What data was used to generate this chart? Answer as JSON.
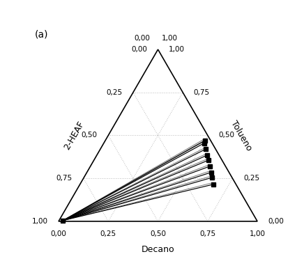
{
  "title": "(a)",
  "axis_labels": {
    "bottom": "Decano",
    "left": "2-HEAF",
    "right": "Tolueno"
  },
  "tick_values": [
    0.0,
    0.25,
    0.5,
    0.75,
    1.0
  ],
  "tick_labels": [
    "0,00",
    "0,25",
    "0,50",
    "0,75",
    "1,00"
  ],
  "grid_color": "#bbbbbb",
  "grid_linestyle": ":",
  "marker_size": 4.5,
  "tie_lines_exp": [
    [
      [
        0.975,
        0.005,
        0.02
      ],
      [
        0.03,
        0.47,
        0.5
      ]
    ],
    [
      [
        0.975,
        0.005,
        0.02
      ],
      [
        0.04,
        0.455,
        0.505
      ]
    ],
    [
      [
        0.975,
        0.005,
        0.02
      ],
      [
        0.05,
        0.42,
        0.53
      ]
    ],
    [
      [
        0.975,
        0.005,
        0.02
      ],
      [
        0.06,
        0.385,
        0.555
      ]
    ],
    [
      [
        0.975,
        0.005,
        0.02
      ],
      [
        0.07,
        0.355,
        0.575
      ]
    ],
    [
      [
        0.975,
        0.005,
        0.02
      ],
      [
        0.08,
        0.32,
        0.6
      ]
    ],
    [
      [
        0.975,
        0.005,
        0.02
      ],
      [
        0.09,
        0.285,
        0.625
      ]
    ],
    [
      [
        0.975,
        0.005,
        0.02
      ],
      [
        0.1,
        0.255,
        0.645
      ]
    ],
    [
      [
        0.975,
        0.005,
        0.02
      ],
      [
        0.115,
        0.215,
        0.67
      ]
    ]
  ],
  "tie_lines_calc": [
    [
      [
        0.975,
        0.005,
        0.02
      ],
      [
        0.025,
        0.48,
        0.495
      ]
    ],
    [
      [
        0.975,
        0.005,
        0.02
      ],
      [
        0.035,
        0.465,
        0.5
      ]
    ],
    [
      [
        0.975,
        0.005,
        0.02
      ],
      [
        0.045,
        0.43,
        0.525
      ]
    ],
    [
      [
        0.975,
        0.005,
        0.02
      ],
      [
        0.055,
        0.395,
        0.55
      ]
    ],
    [
      [
        0.975,
        0.005,
        0.02
      ],
      [
        0.065,
        0.365,
        0.57
      ]
    ],
    [
      [
        0.975,
        0.005,
        0.02
      ],
      [
        0.075,
        0.33,
        0.595
      ]
    ],
    [
      [
        0.975,
        0.005,
        0.02
      ],
      [
        0.085,
        0.295,
        0.62
      ]
    ],
    [
      [
        0.975,
        0.005,
        0.02
      ],
      [
        0.095,
        0.265,
        0.64
      ]
    ],
    [
      [
        0.975,
        0.005,
        0.02
      ],
      [
        0.11,
        0.225,
        0.665
      ]
    ]
  ]
}
